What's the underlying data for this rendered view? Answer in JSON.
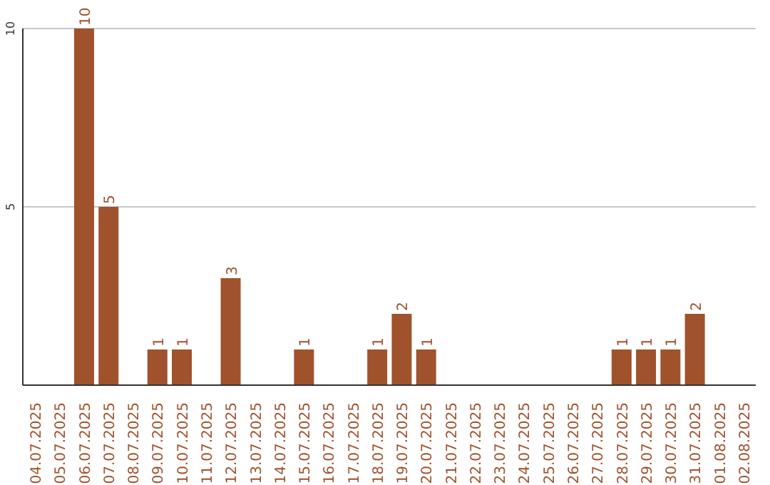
{
  "chart_data": {
    "type": "bar",
    "categories": [
      "04.07.2025",
      "05.07.2025",
      "06.07.2025",
      "07.07.2025",
      "08.07.2025",
      "09.07.2025",
      "10.07.2025",
      "11.07.2025",
      "12.07.2025",
      "13.07.2025",
      "14.07.2025",
      "15.07.2025",
      "16.07.2025",
      "17.07.2025",
      "18.07.2025",
      "19.07.2025",
      "20.07.2025",
      "21.07.2025",
      "22.07.2025",
      "23.07.2025",
      "24.07.2025",
      "25.07.2025",
      "26.07.2025",
      "27.07.2025",
      "28.07.2025",
      "29.07.2025",
      "30.07.2025",
      "31.07.2025",
      "01.08.2025",
      "02.08.2025"
    ],
    "values": [
      0,
      0,
      10,
      5,
      0,
      1,
      1,
      0,
      3,
      0,
      0,
      1,
      0,
      0,
      1,
      2,
      1,
      0,
      0,
      0,
      0,
      0,
      0,
      0,
      1,
      1,
      1,
      2,
      0,
      0
    ],
    "value_labels": [
      null,
      null,
      "10",
      "5",
      null,
      "1",
      "1",
      null,
      "3",
      null,
      null,
      "1",
      null,
      null,
      "1",
      "2",
      "1",
      null,
      null,
      null,
      null,
      null,
      null,
      null,
      "1",
      "1",
      "1",
      "2",
      null,
      null
    ],
    "color": "#a0522d",
    "ylim": [
      0,
      10
    ],
    "yticks": [
      5,
      10
    ],
    "grid": "y"
  }
}
